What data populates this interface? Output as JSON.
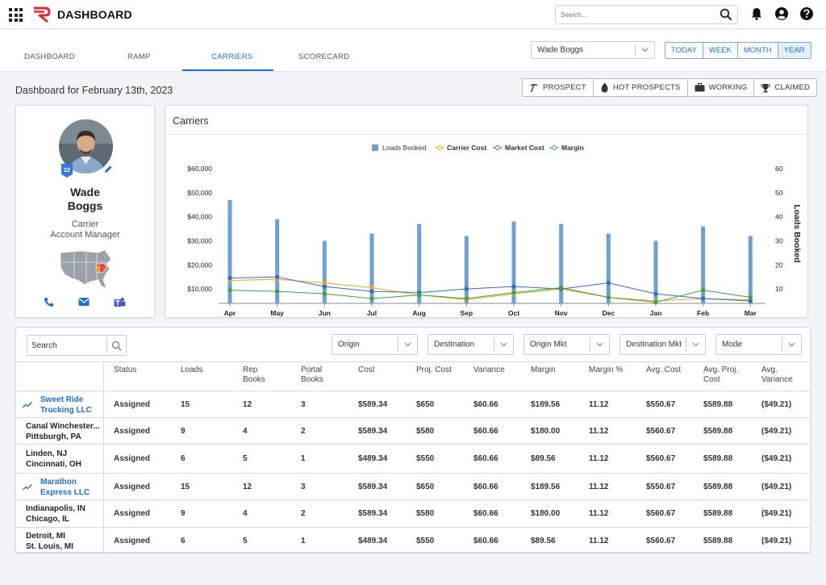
{
  "app": {
    "title": "DASHBOARD",
    "search_placeholder": "Search..."
  },
  "icons": {
    "apps": "apps-grid-icon",
    "logo": "r-logo-icon",
    "search": "search-icon",
    "bell": "bell-icon",
    "user": "user-icon",
    "help": "help-icon"
  },
  "tabs": [
    {
      "label": "DASHBOARD",
      "active": false
    },
    {
      "label": "RAMP",
      "active": false
    },
    {
      "label": "CARRIERS",
      "active": true
    },
    {
      "label": "SCORECARD",
      "active": false
    }
  ],
  "user_select": {
    "value": "Wade Boggs"
  },
  "date_range": [
    "TODAY",
    "WEEK",
    "MONTH",
    "YEAR"
  ],
  "date_range_selected": "YEAR",
  "dashboard_title": "Dashboard for February 13th, 2023",
  "status_buttons": [
    "PROSPECT",
    "HOT PROSPECTS",
    "WORKING",
    "CLAIMED"
  ],
  "profile": {
    "badge": "22",
    "first_name": "Wade",
    "last_name": "Boggs",
    "role_line1": "Carrier",
    "role_line2": "Account Manager",
    "contacts": [
      "phone-icon",
      "email-icon",
      "teams-icon"
    ]
  },
  "colors": {
    "accent": "#1d6fd1",
    "loads_bar": "#6f9fd8",
    "carrier_cost": "#f0a21a",
    "market_cost": "#2c6fc9",
    "margin": "#3aa53a"
  },
  "chart_data": {
    "type": "bar",
    "title": "Carriers",
    "categories": [
      "Apr",
      "May",
      "Jun",
      "Jul",
      "Aug",
      "Sep",
      "Oct",
      "Nov",
      "Dec",
      "Jan",
      "Feb",
      "Mar"
    ],
    "y_left_ticks": [
      "$10,000",
      "$20,000",
      "$30,000",
      "$40,000",
      "$50,000",
      "$60,000"
    ],
    "y_right_ticks": [
      "10",
      "20",
      "30",
      "40",
      "50",
      "60"
    ],
    "ylim_left": [
      4000,
      62000
    ],
    "ylim_right": [
      4,
      62
    ],
    "ylabel_right": "Loads Booked",
    "legend_position": "top",
    "series": [
      {
        "name": "Loads Booked",
        "kind": "bar",
        "axis": "right",
        "values": [
          47,
          39,
          30,
          33,
          37,
          32,
          38,
          37,
          33,
          30,
          36,
          32
        ]
      },
      {
        "name": "Carrier Cost",
        "kind": "line",
        "axis": "left",
        "values": [
          13500,
          14000,
          12500,
          10500,
          7500,
          5500,
          8000,
          10000,
          6500,
          5000,
          6000,
          5500
        ]
      },
      {
        "name": "Market Cost",
        "kind": "line",
        "axis": "left",
        "values": [
          14500,
          15000,
          11000,
          9000,
          8500,
          10000,
          11000,
          10000,
          12500,
          8000,
          6000,
          5000
        ]
      },
      {
        "name": "Margin",
        "kind": "line",
        "axis": "left",
        "values": [
          9500,
          9000,
          8000,
          6000,
          7500,
          6000,
          8500,
          10500,
          6500,
          4500,
          9500,
          6500
        ]
      }
    ]
  },
  "filters": {
    "search": "Search",
    "selects": [
      "Origin",
      "Destination",
      "Origin Mkt",
      "Destination Mkt",
      "Mode"
    ]
  },
  "table": {
    "headers": [
      "Status",
      "Loads",
      "Rep Books",
      "Portal Books",
      "Cost",
      "Proj. Cost",
      "Variance",
      "Margin",
      "Margin %",
      "Avg. Cost",
      "Avg. Proj. Cost",
      "Avg. Variance"
    ],
    "rows": [
      {
        "line1": "Sweet Ride",
        "line2": "Trucking LLC",
        "link": true,
        "cells": [
          "Assigned",
          "15",
          "12",
          "3",
          "$589.34",
          "$650",
          "$60.66",
          "$189.56",
          "11.12",
          "$550.67",
          "$589.88",
          "($49.21)"
        ]
      },
      {
        "line1": "Canal Winchester...",
        "line2": "Pittsburgh, PA",
        "link": false,
        "cells": [
          "Assigned",
          "9",
          "4",
          "2",
          "$589.34",
          "$580",
          "$60.66",
          "$180.00",
          "11.12",
          "$560.67",
          "$589.88",
          "($49.21)"
        ]
      },
      {
        "line1": "Linden, NJ",
        "line2": "Cincinnati, OH",
        "link": false,
        "cells": [
          "Assigned",
          "6",
          "5",
          "1",
          "$489.34",
          "$550",
          "$60.66",
          "$89.56",
          "11.12",
          "$560.67",
          "$589.88",
          "($49.21)"
        ]
      },
      {
        "line1": "Marathon",
        "line2": "Express LLC",
        "link": true,
        "cells": [
          "Assigned",
          "15",
          "12",
          "3",
          "$589.34",
          "$650",
          "$60.66",
          "$189.56",
          "11.12",
          "$550.67",
          "$589.88",
          "($49.21)"
        ]
      },
      {
        "line1": "Indianapolis, IN",
        "line2": "Chicago, IL",
        "link": false,
        "cells": [
          "Assigned",
          "9",
          "4",
          "2",
          "$589.34",
          "$580",
          "$60.66",
          "$180.00",
          "11.12",
          "$560.67",
          "$589.88",
          "($49.21)"
        ]
      },
      {
        "line1": "Detroit, MI",
        "line2": "St. Louis, MI",
        "link": false,
        "cells": [
          "Assigned",
          "6",
          "5",
          "1",
          "$489.34",
          "$550",
          "$60.66",
          "$89.56",
          "11.12",
          "$560.67",
          "$589.88",
          "($49.21)"
        ]
      }
    ]
  }
}
